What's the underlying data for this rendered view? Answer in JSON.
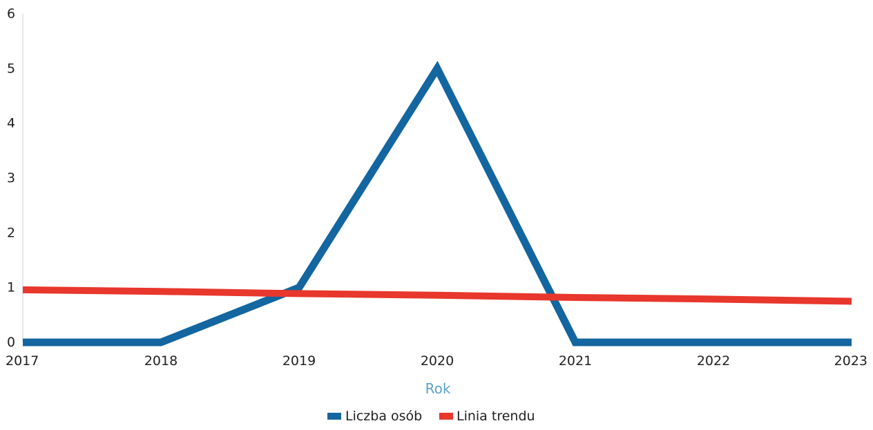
{
  "chart_data": {
    "type": "line",
    "x": [
      "2017",
      "2018",
      "2019",
      "2020",
      "2021",
      "2022",
      "2023"
    ],
    "xlabel": "Rok",
    "ylabel": "",
    "ylim": [
      0,
      6
    ],
    "yticks": [
      0,
      1,
      2,
      3,
      4,
      5,
      6
    ],
    "grid": false,
    "legend_position": "bottom-center",
    "series": [
      {
        "name": "Liczba osób",
        "color": "#1366a0",
        "values": [
          0,
          0,
          1,
          5,
          0,
          0,
          0
        ]
      },
      {
        "name": "Linia trendu",
        "color": "#e8372c",
        "values": [
          0.96,
          0.93,
          0.89,
          0.86,
          0.82,
          0.79,
          0.75
        ]
      }
    ],
    "colors": {
      "axis_title": "#5ba3cc",
      "text": "#1f1f1f",
      "axis_line": "#d6dde3"
    }
  }
}
